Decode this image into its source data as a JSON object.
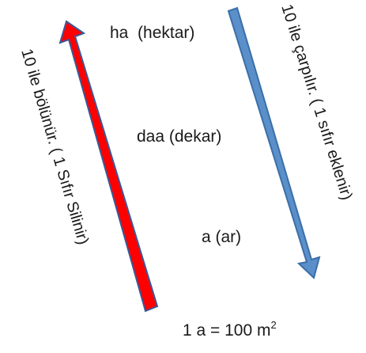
{
  "units": [
    {
      "text": "ha  (hektar)"
    },
    {
      "text": "daa (dekar)"
    },
    {
      "text": "a (ar)"
    }
  ],
  "left_arrow": {
    "label": "10 ile bölünür. ( 1 Sıfır Silinir)",
    "color": "#ff0000",
    "outline": "#3b5998"
  },
  "right_arrow": {
    "label": "10 ile çarpılır. ( 1 sıfır eklenir)",
    "color": "#5b8fc9",
    "outline": "#3a6fa8"
  },
  "formula": {
    "main": "1 a = 100 m",
    "superscript": "2"
  }
}
